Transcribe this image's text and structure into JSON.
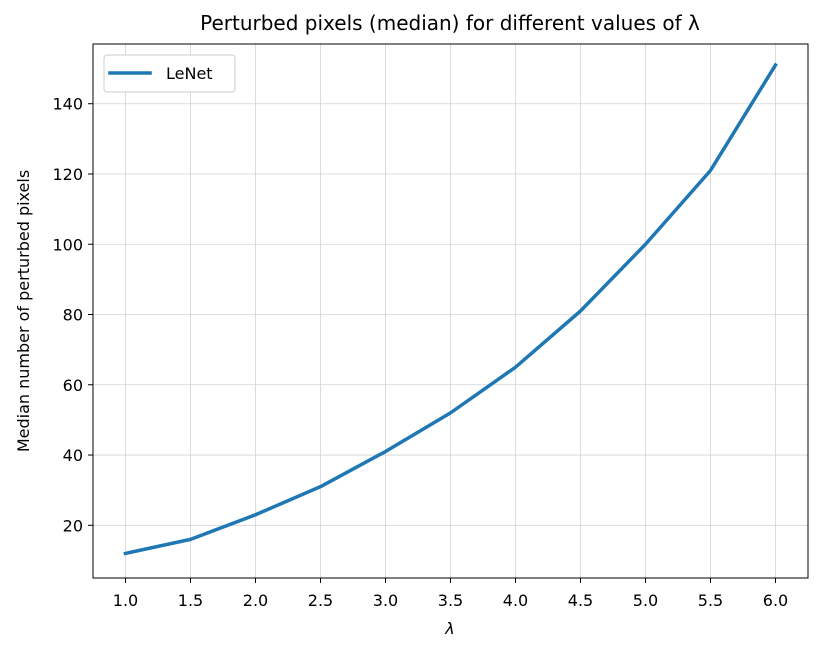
{
  "chart_data": {
    "type": "line",
    "title": "Perturbed pixels (median) for different values of λ",
    "xlabel": "λ",
    "ylabel": "Median number of perturbed pixels",
    "x": [
      1.0,
      1.5,
      2.0,
      2.5,
      3.0,
      3.5,
      4.0,
      4.5,
      5.0,
      5.5,
      6.0
    ],
    "x_tick_labels": [
      "1.0",
      "1.5",
      "2.0",
      "2.5",
      "3.0",
      "3.5",
      "4.0",
      "4.5",
      "5.0",
      "5.5",
      "6.0"
    ],
    "y_ticks": [
      20,
      40,
      60,
      80,
      100,
      120,
      140
    ],
    "y_tick_labels": [
      "20",
      "40",
      "60",
      "80",
      "100",
      "120",
      "140"
    ],
    "xlim": [
      0.75,
      6.25
    ],
    "ylim": [
      5,
      157
    ],
    "grid": true,
    "legend_position": "top-left",
    "series": [
      {
        "name": "LeNet",
        "color": "#1f77b4",
        "values": [
          12,
          16,
          23,
          31,
          41,
          52,
          65,
          81,
          100,
          121,
          151
        ]
      }
    ]
  }
}
